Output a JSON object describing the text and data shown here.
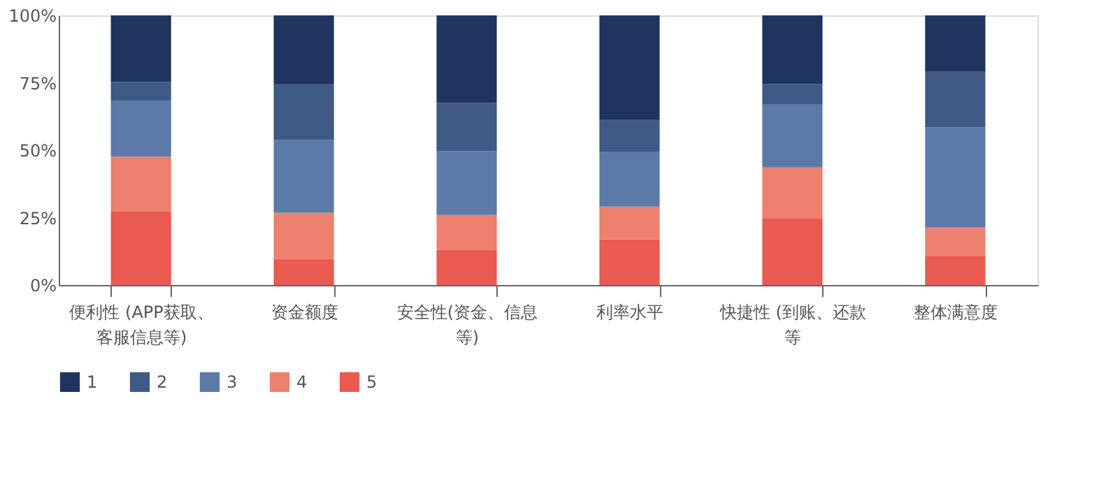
{
  "chart_data": {
    "type": "bar",
    "stacked": true,
    "categories": [
      "便利性 (APP获取、客服信息等)",
      "资金额度",
      "安全性(资金、信息等)",
      "利率水平",
      "快捷性 (到账、还款等",
      "整体满意度"
    ],
    "series": [
      {
        "name": "5",
        "color": "#e95a50",
        "values": [
          27.2,
          9.7,
          13.0,
          17.0,
          24.6,
          10.6
        ]
      },
      {
        "name": "4",
        "color": "#ee806e",
        "values": [
          20.4,
          17.1,
          13.0,
          12.1,
          19.0,
          10.7
        ]
      },
      {
        "name": "3",
        "color": "#5b7aa8",
        "values": [
          20.8,
          27.0,
          23.7,
          20.2,
          23.5,
          37.2
        ]
      },
      {
        "name": "2",
        "color": "#3e5a85",
        "values": [
          6.9,
          20.8,
          17.8,
          12.1,
          7.4,
          20.6
        ]
      },
      {
        "name": "1",
        "color": "#1f3560",
        "values": [
          24.7,
          25.4,
          32.5,
          38.6,
          25.5,
          20.9
        ]
      }
    ],
    "ylim": [
      0,
      100
    ],
    "yticks": [
      {
        "value": 0,
        "label": "0%"
      },
      {
        "value": 25,
        "label": "25%"
      },
      {
        "value": 50,
        "label": "50%"
      },
      {
        "value": 75,
        "label": "75%"
      },
      {
        "value": 100,
        "label": "100%"
      }
    ],
    "grid": false,
    "legend": "bottom"
  }
}
